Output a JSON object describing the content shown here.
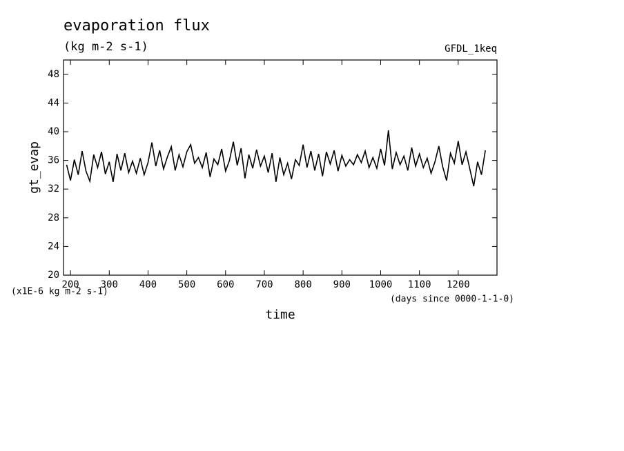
{
  "chart_data": {
    "type": "line",
    "title": "evaporation flux",
    "subtitle": "(kg m-2 s-1)",
    "dataset": "GFDL_1keq",
    "ylabel": "gt_evap",
    "yunits": "(x1E-6 kg m-2 s-1)",
    "xlabel": "time",
    "xunits": "(days since 0000-1-1-0)",
    "xlim": [
      182,
      1300
    ],
    "xticks": [
      200,
      300,
      400,
      500,
      600,
      700,
      800,
      900,
      1000,
      1100,
      1200
    ],
    "ylim": [
      20,
      50
    ],
    "yticks": [
      20,
      24,
      28,
      32,
      36,
      40,
      44,
      48
    ],
    "x": [
      190,
      200,
      210,
      220,
      230,
      240,
      250,
      260,
      270,
      280,
      290,
      300,
      310,
      320,
      330,
      340,
      350,
      360,
      370,
      380,
      390,
      400,
      410,
      420,
      430,
      440,
      450,
      460,
      470,
      480,
      490,
      500,
      510,
      520,
      530,
      540,
      550,
      560,
      570,
      580,
      590,
      600,
      610,
      620,
      630,
      640,
      650,
      660,
      670,
      680,
      690,
      700,
      710,
      720,
      730,
      740,
      750,
      760,
      770,
      780,
      790,
      800,
      810,
      820,
      830,
      840,
      850,
      860,
      870,
      880,
      890,
      900,
      910,
      920,
      930,
      940,
      950,
      960,
      970,
      980,
      990,
      1000,
      1010,
      1020,
      1030,
      1040,
      1050,
      1060,
      1070,
      1080,
      1090,
      1100,
      1110,
      1120,
      1130,
      1140,
      1150,
      1160,
      1170,
      1180,
      1190,
      1200,
      1210,
      1220,
      1230,
      1240,
      1250,
      1260,
      1270
    ],
    "series": [
      {
        "name": "gt_evap",
        "color": "#000000",
        "values": [
          35.4,
          33.2,
          36.1,
          34.0,
          37.3,
          34.5,
          33.1,
          36.8,
          35.0,
          37.2,
          34.1,
          35.8,
          33.0,
          36.9,
          34.6,
          37.0,
          34.3,
          35.9,
          34.2,
          36.3,
          34.0,
          35.7,
          38.5,
          35.2,
          37.4,
          34.8,
          36.5,
          37.9,
          34.6,
          36.8,
          35.1,
          37.2,
          38.2,
          35.6,
          36.4,
          35.0,
          37.1,
          33.7,
          36.2,
          35.4,
          37.6,
          34.5,
          36.0,
          38.6,
          35.3,
          37.7,
          33.5,
          36.8,
          34.9,
          37.5,
          35.2,
          36.6,
          34.3,
          37.0,
          33.0,
          36.4,
          34.0,
          35.6,
          33.4,
          36.1,
          35.3,
          38.2,
          35.0,
          37.3,
          34.6,
          36.9,
          33.8,
          37.2,
          35.5,
          37.4,
          34.5,
          36.7,
          35.2,
          36.1,
          35.4,
          36.8,
          35.7,
          37.3,
          35.0,
          36.4,
          34.9,
          37.6,
          35.3,
          40.2,
          34.8,
          37.1,
          35.4,
          36.6,
          34.6,
          37.8,
          35.2,
          36.9,
          35.0,
          36.3,
          34.2,
          35.8,
          38.0,
          35.1,
          33.2,
          37.0,
          35.6,
          38.7,
          35.4,
          37.2,
          34.8,
          32.4,
          35.8,
          34.0,
          37.4
        ]
      }
    ]
  }
}
